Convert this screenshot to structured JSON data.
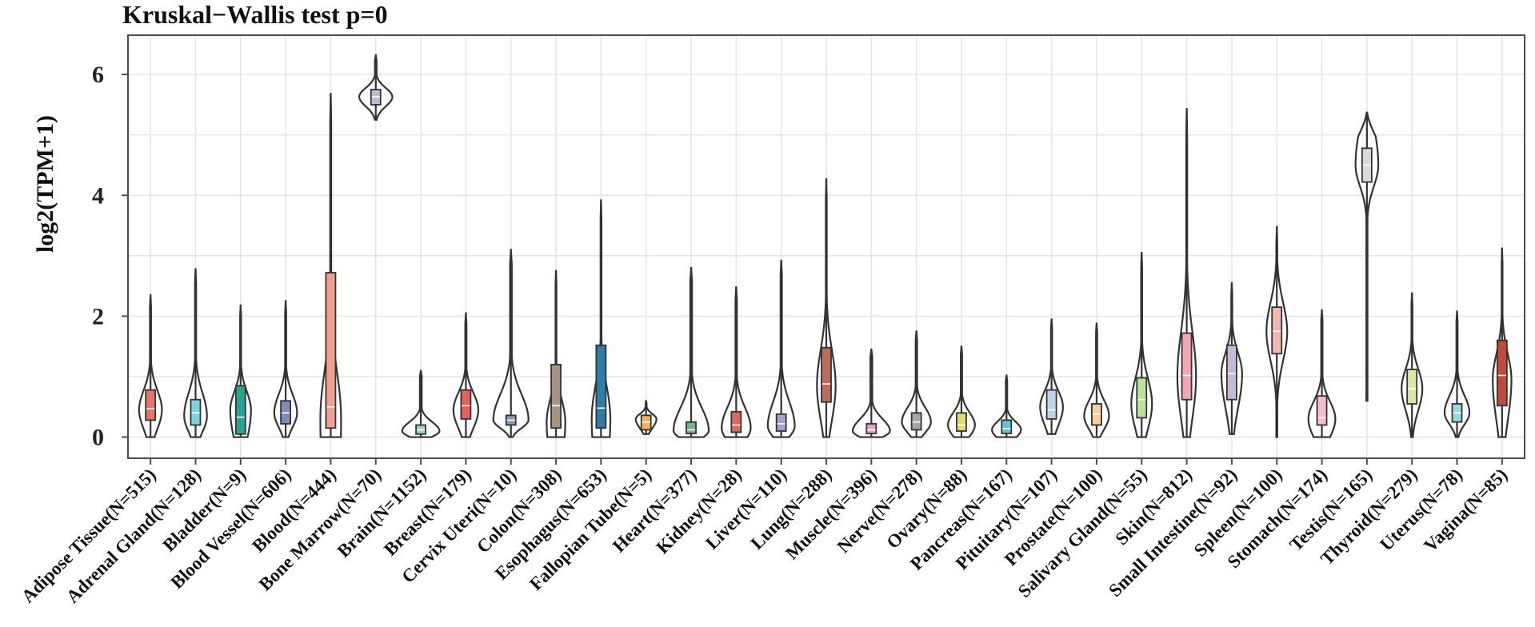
{
  "chart_data": {
    "type": "violin",
    "title": "Kruskal−Wallis test p=0",
    "xlabel": "",
    "ylabel": "log2(TPM+1)",
    "ylim": [
      -0.35,
      6.65
    ],
    "yticks": [
      0,
      2,
      4,
      6
    ],
    "ytick_labels": [
      "0",
      "2",
      "4",
      "6"
    ],
    "grid": true,
    "categories": [
      "Adipose Tissue(N=515)",
      "Adrenal Gland(N=128)",
      "Bladder(N=9)",
      "Blood Vessel(N=606)",
      "Blood(N=444)",
      "Bone Marrow(N=70)",
      "Brain(N=1152)",
      "Breast(N=179)",
      "Cervix Uteri(N=10)",
      "Colon(N=308)",
      "Esophagus(N=653)",
      "Fallopian Tube(N=5)",
      "Heart(N=377)",
      "Kidney(N=28)",
      "Liver(N=110)",
      "Lung(N=288)",
      "Muscle(N=396)",
      "Nerve(N=278)",
      "Ovary(N=88)",
      "Pancreas(N=167)",
      "Pituitary(N=107)",
      "Prostate(N=100)",
      "Salivary Gland(N=55)",
      "Skin(N=812)",
      "Small Intestine(N=92)",
      "Spleen(N=100)",
      "Stomach(N=174)",
      "Testis(N=165)",
      "Thyroid(N=279)",
      "Uterus(N=78)",
      "Vagina(N=85)"
    ],
    "colors": [
      "#e8716a",
      "#7ed3e0",
      "#2aa38f",
      "#7d8cb8",
      "#f0a08f",
      "#bdbdd1",
      "#9fcfc2",
      "#e85f5f",
      "#8a9bb8",
      "#a89380",
      "#2e7fa8",
      "#f2b25a",
      "#6fb58a",
      "#e16565",
      "#a99ed1",
      "#b86e5a",
      "#e1a3c3",
      "#a6a6a6",
      "#e0dc6f",
      "#5ec4d6",
      "#bcd3ec",
      "#f7cf9e",
      "#b9e3a3",
      "#f2a8b2",
      "#c8b9d6",
      "#f0b8b0",
      "#f5bdd0",
      "#d9d9d9",
      "#e0e6a8",
      "#9fd8de",
      "#c14a3a"
    ],
    "series": [
      {
        "min": 0.0,
        "q1": 0.28,
        "median": 0.47,
        "q3": 0.78,
        "max": 2.35,
        "peak": 0.45,
        "width": 0.55
      },
      {
        "min": 0.0,
        "q1": 0.2,
        "median": 0.4,
        "q3": 0.62,
        "max": 2.78,
        "peak": 0.35,
        "width": 0.55
      },
      {
        "min": 0.0,
        "q1": 0.05,
        "median": 0.33,
        "q3": 0.85,
        "max": 2.18,
        "peak": 0.45,
        "width": 0.5
      },
      {
        "min": 0.0,
        "q1": 0.22,
        "median": 0.4,
        "q3": 0.6,
        "max": 2.25,
        "peak": 0.4,
        "width": 0.55
      },
      {
        "min": 0.0,
        "q1": 0.15,
        "median": 0.5,
        "q3": 2.72,
        "max": 5.68,
        "peak": 0.3,
        "width": 0.5
      },
      {
        "min": 5.25,
        "q1": 5.5,
        "median": 5.63,
        "q3": 5.75,
        "max": 6.32,
        "peak": 5.63,
        "width": 0.8
      },
      {
        "min": 0.0,
        "q1": 0.05,
        "median": 0.12,
        "q3": 0.2,
        "max": 1.1,
        "peak": 0.1,
        "width": 0.9
      },
      {
        "min": 0.0,
        "q1": 0.3,
        "median": 0.52,
        "q3": 0.78,
        "max": 2.05,
        "peak": 0.45,
        "width": 0.6
      },
      {
        "min": 0.0,
        "q1": 0.2,
        "median": 0.28,
        "q3": 0.36,
        "max": 3.1,
        "peak": 0.28,
        "width": 0.85
      },
      {
        "min": 0.0,
        "q1": 0.15,
        "median": 0.52,
        "q3": 1.2,
        "max": 2.75,
        "peak": 0.25,
        "width": 0.45
      },
      {
        "min": 0.0,
        "q1": 0.15,
        "median": 0.48,
        "q3": 1.52,
        "max": 3.92,
        "peak": 0.3,
        "width": 0.45
      },
      {
        "min": 0.05,
        "q1": 0.12,
        "median": 0.25,
        "q3": 0.36,
        "max": 0.6,
        "peak": 0.3,
        "width": 0.5
      },
      {
        "min": 0.0,
        "q1": 0.06,
        "median": 0.12,
        "q3": 0.25,
        "max": 2.8,
        "peak": 0.1,
        "width": 0.85
      },
      {
        "min": 0.0,
        "q1": 0.08,
        "median": 0.2,
        "q3": 0.42,
        "max": 2.48,
        "peak": 0.15,
        "width": 0.7
      },
      {
        "min": 0.0,
        "q1": 0.1,
        "median": 0.22,
        "q3": 0.38,
        "max": 2.92,
        "peak": 0.18,
        "width": 0.65
      },
      {
        "min": 0.0,
        "q1": 0.58,
        "median": 0.88,
        "q3": 1.48,
        "max": 4.27,
        "peak": 0.85,
        "width": 0.45
      },
      {
        "min": 0.0,
        "q1": 0.06,
        "median": 0.12,
        "q3": 0.22,
        "max": 1.45,
        "peak": 0.1,
        "width": 0.9
      },
      {
        "min": 0.0,
        "q1": 0.12,
        "median": 0.25,
        "q3": 0.4,
        "max": 1.75,
        "peak": 0.25,
        "width": 0.7
      },
      {
        "min": 0.0,
        "q1": 0.1,
        "median": 0.2,
        "q3": 0.4,
        "max": 1.5,
        "peak": 0.2,
        "width": 0.65
      },
      {
        "min": 0.0,
        "q1": 0.06,
        "median": 0.14,
        "q3": 0.28,
        "max": 1.02,
        "peak": 0.12,
        "width": 0.7
      },
      {
        "min": 0.05,
        "q1": 0.3,
        "median": 0.45,
        "q3": 0.78,
        "max": 1.95,
        "peak": 0.5,
        "width": 0.55
      },
      {
        "min": 0.0,
        "q1": 0.2,
        "median": 0.38,
        "q3": 0.55,
        "max": 1.88,
        "peak": 0.35,
        "width": 0.6
      },
      {
        "min": 0.0,
        "q1": 0.32,
        "median": 0.62,
        "q3": 0.98,
        "max": 3.05,
        "peak": 0.55,
        "width": 0.5
      },
      {
        "min": 0.0,
        "q1": 0.62,
        "median": 1.02,
        "q3": 1.72,
        "max": 5.43,
        "peak": 1.0,
        "width": 0.45
      },
      {
        "min": 0.05,
        "q1": 0.62,
        "median": 1.05,
        "q3": 1.52,
        "max": 2.55,
        "peak": 1.05,
        "width": 0.5
      },
      {
        "min": 0.0,
        "q1": 1.38,
        "median": 1.75,
        "q3": 2.15,
        "max": 3.48,
        "peak": 1.75,
        "width": 0.5
      },
      {
        "min": 0.0,
        "q1": 0.2,
        "median": 0.32,
        "q3": 0.68,
        "max": 2.1,
        "peak": 0.3,
        "width": 0.65
      },
      {
        "min": 0.6,
        "q1": 4.22,
        "median": 4.5,
        "q3": 4.78,
        "max": 5.37,
        "peak": 4.5,
        "width": 0.55
      },
      {
        "min": 0.0,
        "q1": 0.55,
        "median": 0.8,
        "q3": 1.12,
        "max": 2.38,
        "peak": 0.8,
        "width": 0.5
      },
      {
        "min": 0.0,
        "q1": 0.25,
        "median": 0.4,
        "q3": 0.55,
        "max": 2.08,
        "peak": 0.4,
        "width": 0.6
      },
      {
        "min": 0.0,
        "q1": 0.52,
        "median": 1.02,
        "q3": 1.6,
        "max": 3.12,
        "peak": 0.95,
        "width": 0.45
      }
    ]
  }
}
